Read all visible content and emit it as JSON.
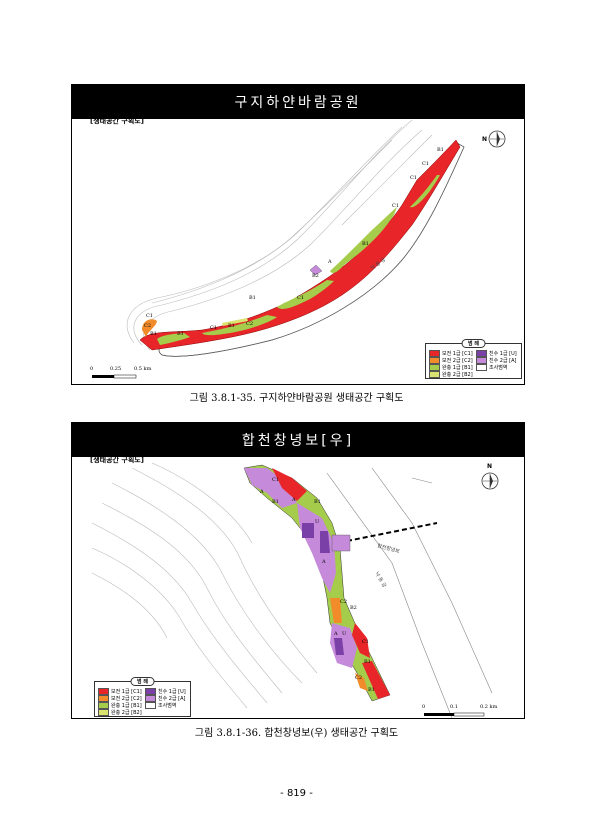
{
  "figure1": {
    "header": "구지하얀바람공원",
    "subtitle": "[생태공간 구획도]",
    "caption": "그림 3.8.1-35. 구지하얀바람공원 생태공간 구획도",
    "river_label": "낙 동 강",
    "scale": [
      "0",
      "0.25",
      "0.5 km"
    ],
    "zone_labels": [
      "B1",
      "C1",
      "C1",
      "C1",
      "B1",
      "A",
      "B2",
      "C1",
      "B1",
      "C2",
      "B1",
      "C1",
      "B1",
      "C1",
      "C2",
      "B1"
    ]
  },
  "figure2": {
    "header": "합천창녕보[우]",
    "subtitle": "[생태공간 구획도]",
    "caption": "그림 3.8.1-36. 합천창녕보(우) 생태공간 구획도",
    "weir_label": "합천창녕보",
    "river_label": "낙 동 강",
    "scale": [
      "0",
      "0.1",
      "0.2 km"
    ],
    "zone_labels": [
      "C1",
      "A",
      "B1",
      "A",
      "B1",
      "U",
      "A",
      "C2",
      "B2",
      "A",
      "U",
      "C1",
      "B1",
      "C2",
      "B1"
    ]
  },
  "legend": {
    "title": "범 례",
    "items": [
      {
        "label": "보전 1급 [C1]",
        "color": "#e8262a"
      },
      {
        "label": "보전 2급 [C2]",
        "color": "#f28c2a"
      },
      {
        "label": "완충 1급 [B1]",
        "color": "#a6cc4b"
      },
      {
        "label": "완충 2급 [B2]",
        "color": "#d9e36e"
      },
      {
        "label": "친수 1급 [U]",
        "color": "#7b3fa8"
      },
      {
        "label": "친수 2급 [A]",
        "color": "#c58ad9"
      },
      {
        "label": "조사범역",
        "color": "#ffffff"
      }
    ]
  },
  "north": "N",
  "page_number": "- 819 -"
}
